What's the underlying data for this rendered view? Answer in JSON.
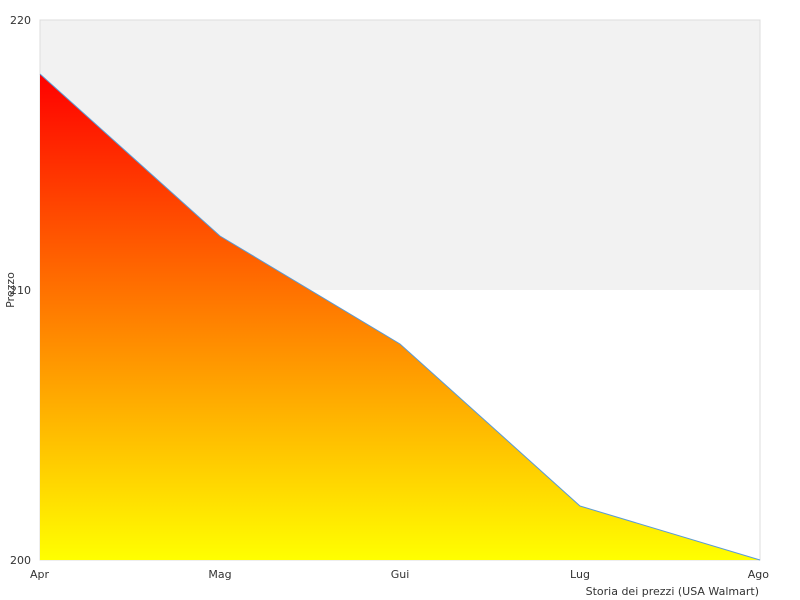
{
  "chart_data": {
    "type": "area",
    "categories": [
      "Apr",
      "Mag",
      "Gui",
      "Lug",
      "Ago"
    ],
    "series": [
      {
        "values": [
          218,
          212,
          208,
          202,
          200
        ]
      }
    ],
    "ylabel": "Prezzo",
    "xlabel": "Storia dei prezzi (USA Walmart)",
    "ylim": [
      200,
      220
    ],
    "yticks": [
      200,
      210,
      220
    ],
    "grid": false,
    "upper_band_shaded": [
      210,
      220
    ],
    "colors": {
      "fill_top": "#ff0000",
      "fill_bottom": "#ffff00",
      "line": "#5b9bd5",
      "band": "#f2f2f2",
      "frame": "#dddddd"
    }
  }
}
